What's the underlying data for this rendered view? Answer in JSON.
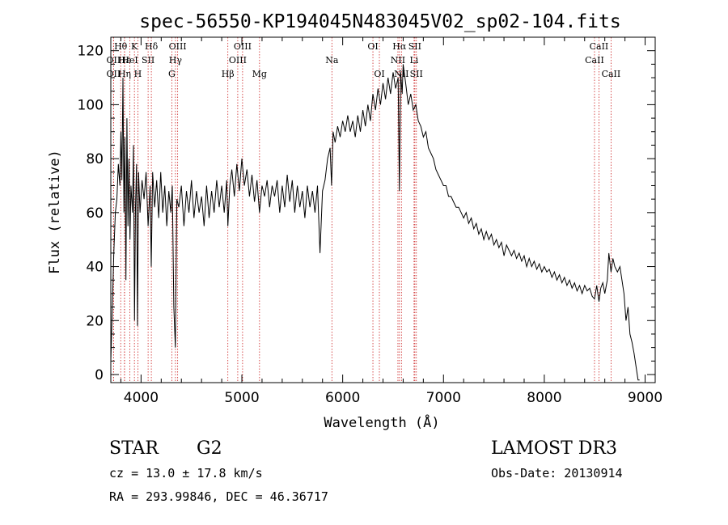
{
  "chart_data": {
    "type": "line",
    "title": "spec-56550-KP194045N483045V02_sp02-104.fits",
    "xlabel": "Wavelength (Å)",
    "ylabel": "Flux (relative)",
    "xlim": [
      3700,
      9100
    ],
    "ylim": [
      -3,
      125
    ],
    "xticks": [
      4000,
      5000,
      6000,
      7000,
      8000,
      9000
    ],
    "yticks": [
      0,
      20,
      40,
      60,
      80,
      100,
      120
    ],
    "series": [
      {
        "name": "flux",
        "points": [
          [
            3700,
            5
          ],
          [
            3715,
            25
          ],
          [
            3730,
            45
          ],
          [
            3745,
            60
          ],
          [
            3760,
            65
          ],
          [
            3775,
            78
          ],
          [
            3790,
            70
          ],
          [
            3800,
            90
          ],
          [
            3810,
            72
          ],
          [
            3820,
            110
          ],
          [
            3830,
            60
          ],
          [
            3840,
            88
          ],
          [
            3850,
            35
          ],
          [
            3860,
            95
          ],
          [
            3870,
            55
          ],
          [
            3880,
            80
          ],
          [
            3890,
            50
          ],
          [
            3900,
            70
          ],
          [
            3915,
            60
          ],
          [
            3925,
            85
          ],
          [
            3935,
            20
          ],
          [
            3945,
            62
          ],
          [
            3955,
            78
          ],
          [
            3965,
            18
          ],
          [
            3975,
            75
          ],
          [
            3990,
            60
          ],
          [
            4010,
            72
          ],
          [
            4030,
            65
          ],
          [
            4050,
            75
          ],
          [
            4070,
            55
          ],
          [
            4090,
            70
          ],
          [
            4101,
            40
          ],
          [
            4115,
            75
          ],
          [
            4135,
            62
          ],
          [
            4155,
            72
          ],
          [
            4175,
            58
          ],
          [
            4195,
            75
          ],
          [
            4215,
            60
          ],
          [
            4235,
            70
          ],
          [
            4255,
            55
          ],
          [
            4275,
            68
          ],
          [
            4295,
            60
          ],
          [
            4310,
            70
          ],
          [
            4325,
            25
          ],
          [
            4340,
            10
          ],
          [
            4355,
            65
          ],
          [
            4375,
            62
          ],
          [
            4400,
            70
          ],
          [
            4425,
            55
          ],
          [
            4450,
            68
          ],
          [
            4475,
            60
          ],
          [
            4500,
            72
          ],
          [
            4525,
            58
          ],
          [
            4550,
            68
          ],
          [
            4575,
            60
          ],
          [
            4600,
            66
          ],
          [
            4625,
            55
          ],
          [
            4650,
            70
          ],
          [
            4675,
            58
          ],
          [
            4700,
            68
          ],
          [
            4725,
            60
          ],
          [
            4750,
            72
          ],
          [
            4775,
            62
          ],
          [
            4800,
            70
          ],
          [
            4825,
            60
          ],
          [
            4850,
            72
          ],
          [
            4861,
            55
          ],
          [
            4880,
            70
          ],
          [
            4900,
            76
          ],
          [
            4925,
            66
          ],
          [
            4950,
            78
          ],
          [
            4975,
            68
          ],
          [
            5000,
            80
          ],
          [
            5025,
            70
          ],
          [
            5050,
            76
          ],
          [
            5075,
            66
          ],
          [
            5100,
            74
          ],
          [
            5125,
            64
          ],
          [
            5150,
            72
          ],
          [
            5175,
            60
          ],
          [
            5200,
            70
          ],
          [
            5225,
            66
          ],
          [
            5250,
            72
          ],
          [
            5275,
            62
          ],
          [
            5300,
            70
          ],
          [
            5325,
            66
          ],
          [
            5350,
            72
          ],
          [
            5375,
            60
          ],
          [
            5400,
            70
          ],
          [
            5425,
            62
          ],
          [
            5450,
            74
          ],
          [
            5475,
            64
          ],
          [
            5500,
            72
          ],
          [
            5525,
            60
          ],
          [
            5550,
            70
          ],
          [
            5575,
            62
          ],
          [
            5600,
            68
          ],
          [
            5625,
            58
          ],
          [
            5650,
            70
          ],
          [
            5675,
            62
          ],
          [
            5700,
            68
          ],
          [
            5725,
            60
          ],
          [
            5750,
            70
          ],
          [
            5775,
            45
          ],
          [
            5800,
            68
          ],
          [
            5825,
            72
          ],
          [
            5850,
            80
          ],
          [
            5875,
            84
          ],
          [
            5890,
            70
          ],
          [
            5905,
            90
          ],
          [
            5925,
            86
          ],
          [
            5950,
            92
          ],
          [
            5975,
            88
          ],
          [
            6000,
            94
          ],
          [
            6025,
            90
          ],
          [
            6050,
            96
          ],
          [
            6075,
            90
          ],
          [
            6100,
            94
          ],
          [
            6125,
            88
          ],
          [
            6150,
            96
          ],
          [
            6175,
            90
          ],
          [
            6200,
            98
          ],
          [
            6225,
            92
          ],
          [
            6250,
            100
          ],
          [
            6275,
            94
          ],
          [
            6300,
            104
          ],
          [
            6325,
            98
          ],
          [
            6350,
            106
          ],
          [
            6375,
            100
          ],
          [
            6400,
            108
          ],
          [
            6425,
            102
          ],
          [
            6450,
            110
          ],
          [
            6475,
            104
          ],
          [
            6500,
            112
          ],
          [
            6525,
            106
          ],
          [
            6550,
            110
          ],
          [
            6563,
            68
          ],
          [
            6575,
            112
          ],
          [
            6590,
            104
          ],
          [
            6600,
            115
          ],
          [
            6625,
            108
          ],
          [
            6650,
            100
          ],
          [
            6675,
            104
          ],
          [
            6700,
            98
          ],
          [
            6725,
            100
          ],
          [
            6750,
            94
          ],
          [
            6775,
            92
          ],
          [
            6800,
            88
          ],
          [
            6825,
            90
          ],
          [
            6850,
            84
          ],
          [
            6875,
            82
          ],
          [
            6900,
            80
          ],
          [
            6925,
            76
          ],
          [
            6950,
            74
          ],
          [
            6975,
            72
          ],
          [
            7000,
            70
          ],
          [
            7025,
            70
          ],
          [
            7050,
            66
          ],
          [
            7075,
            66
          ],
          [
            7100,
            64
          ],
          [
            7125,
            62
          ],
          [
            7150,
            62
          ],
          [
            7175,
            60
          ],
          [
            7200,
            58
          ],
          [
            7225,
            60
          ],
          [
            7250,
            56
          ],
          [
            7275,
            58
          ],
          [
            7300,
            54
          ],
          [
            7325,
            56
          ],
          [
            7350,
            52
          ],
          [
            7375,
            54
          ],
          [
            7400,
            50
          ],
          [
            7425,
            53
          ],
          [
            7450,
            50
          ],
          [
            7475,
            52
          ],
          [
            7500,
            48
          ],
          [
            7525,
            50
          ],
          [
            7550,
            47
          ],
          [
            7575,
            49
          ],
          [
            7600,
            44
          ],
          [
            7625,
            48
          ],
          [
            7650,
            46
          ],
          [
            7675,
            44
          ],
          [
            7700,
            46
          ],
          [
            7725,
            43
          ],
          [
            7750,
            45
          ],
          [
            7775,
            42
          ],
          [
            7800,
            44
          ],
          [
            7825,
            40
          ],
          [
            7850,
            43
          ],
          [
            7875,
            40
          ],
          [
            7900,
            42
          ],
          [
            7925,
            39
          ],
          [
            7950,
            41
          ],
          [
            7975,
            38
          ],
          [
            8000,
            40
          ],
          [
            8025,
            38
          ],
          [
            8050,
            39
          ],
          [
            8075,
            36
          ],
          [
            8100,
            38
          ],
          [
            8125,
            35
          ],
          [
            8150,
            37
          ],
          [
            8175,
            34
          ],
          [
            8200,
            36
          ],
          [
            8225,
            33
          ],
          [
            8250,
            35
          ],
          [
            8275,
            32
          ],
          [
            8300,
            34
          ],
          [
            8325,
            31
          ],
          [
            8350,
            33
          ],
          [
            8375,
            30
          ],
          [
            8400,
            33
          ],
          [
            8425,
            31
          ],
          [
            8450,
            32
          ],
          [
            8475,
            29
          ],
          [
            8498,
            28
          ],
          [
            8520,
            33
          ],
          [
            8542,
            27
          ],
          [
            8560,
            32
          ],
          [
            8580,
            34
          ],
          [
            8600,
            30
          ],
          [
            8625,
            35
          ],
          [
            8640,
            45
          ],
          [
            8662,
            38
          ],
          [
            8680,
            43
          ],
          [
            8700,
            40
          ],
          [
            8725,
            38
          ],
          [
            8750,
            40
          ],
          [
            8770,
            35
          ],
          [
            8790,
            30
          ],
          [
            8810,
            20
          ],
          [
            8830,
            25
          ],
          [
            8850,
            15
          ],
          [
            8870,
            12
          ],
          [
            8890,
            8
          ],
          [
            8910,
            3
          ],
          [
            8930,
            -2
          ],
          [
            8945,
            -2
          ]
        ]
      }
    ],
    "spectral_lines": [
      {
        "label": "Hθ",
        "x": 3798,
        "row": 0
      },
      {
        "label": "OII",
        "x": 3727,
        "row": 1
      },
      {
        "label": "OII",
        "x": 3727,
        "row": 2
      },
      {
        "label": "Hε",
        "x": 3835,
        "row": 1
      },
      {
        "label": "Hη",
        "x": 3836,
        "row": 2
      },
      {
        "label": "K",
        "x": 3934,
        "row": 0
      },
      {
        "label": "HeI",
        "x": 3889,
        "row": 1
      },
      {
        "label": "H",
        "x": 3968,
        "row": 2
      },
      {
        "label": "SII",
        "x": 4070,
        "row": 1
      },
      {
        "label": "Hδ",
        "x": 4102,
        "row": 0
      },
      {
        "label": "OIII",
        "x": 4363,
        "row": 0
      },
      {
        "label": "Hγ",
        "x": 4341,
        "row": 1
      },
      {
        "label": "G",
        "x": 4305,
        "row": 2
      },
      {
        "label": "Hβ",
        "x": 4861,
        "row": 2
      },
      {
        "label": "OIII",
        "x": 5007,
        "row": 0
      },
      {
        "label": "OIII",
        "x": 4959,
        "row": 1
      },
      {
        "label": "Mg",
        "x": 5175,
        "row": 2
      },
      {
        "label": "Na",
        "x": 5893,
        "row": 1
      },
      {
        "label": "OI",
        "x": 6300,
        "row": 0
      },
      {
        "label": "OI",
        "x": 6364,
        "row": 2
      },
      {
        "label": "Hα",
        "x": 6563,
        "row": 0
      },
      {
        "label": "NII",
        "x": 6548,
        "row": 1
      },
      {
        "label": "NII",
        "x": 6583,
        "row": 2
      },
      {
        "label": "SII",
        "x": 6716,
        "row": 0
      },
      {
        "label": "Li",
        "x": 6708,
        "row": 1
      },
      {
        "label": "SII",
        "x": 6731,
        "row": 2
      },
      {
        "label": "CaII",
        "x": 8542,
        "row": 0
      },
      {
        "label": "CaII",
        "x": 8498,
        "row": 1
      },
      {
        "label": "CaII",
        "x": 8662,
        "row": 2
      }
    ]
  },
  "info": {
    "object_type": "STAR",
    "subclass": "G2",
    "survey": "LAMOST DR3",
    "cz": "cz = 13.0 ± 17.8 km/s",
    "obs_date": "Obs-Date: 20130914",
    "coords": "RA = 293.99846, DEC =  46.36717"
  }
}
